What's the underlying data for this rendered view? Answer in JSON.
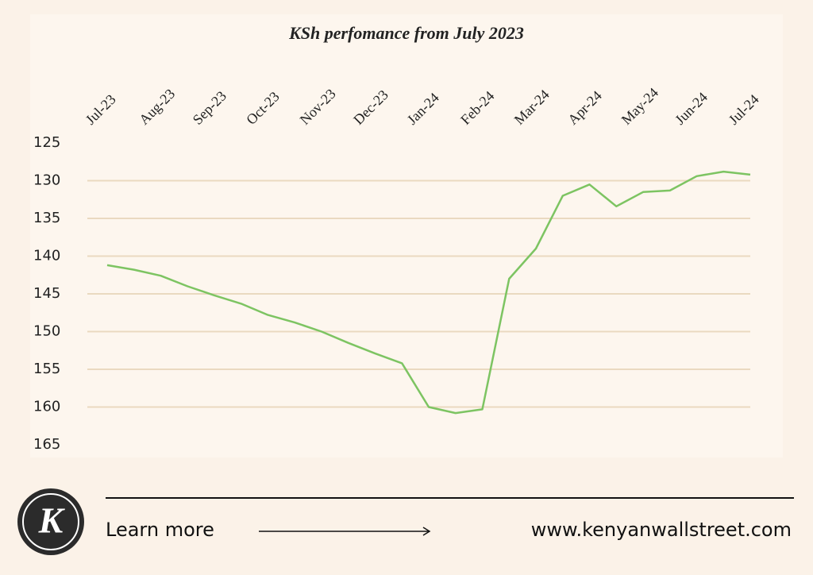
{
  "chart_data": {
    "type": "line",
    "title": "KSh perfomance from July 2023",
    "categories": [
      "Jul-23",
      null,
      "Aug-23",
      null,
      "Sep-23",
      null,
      "Oct-23",
      null,
      "Nov-23",
      null,
      "Dec-23",
      null,
      "Jan-24",
      null,
      "Feb-24",
      null,
      "Mar-24",
      null,
      "Apr-24",
      null,
      "May-24",
      null,
      "Jun-24",
      null,
      "Jul-24"
    ],
    "series": [
      {
        "name": "KSh",
        "color": "#7dc462",
        "values": [
          141.2,
          141.8,
          142.6,
          144,
          145.2,
          146.3,
          147.8,
          148.8,
          150,
          151.5,
          152.9,
          154.2,
          160,
          160.8,
          160.3,
          143,
          139,
          132,
          130.5,
          133.4,
          131.5,
          131.3,
          129.4,
          128.8,
          129.2
        ]
      }
    ],
    "ylim": [
      125,
      165
    ],
    "yticks": [
      125,
      130,
      135,
      140,
      145,
      150,
      155,
      160,
      165
    ],
    "y_inverted": true,
    "grid": true
  },
  "footer": {
    "logo": "K",
    "link_text": "Learn more",
    "url": "www.kenyanwallstreet.com"
  }
}
